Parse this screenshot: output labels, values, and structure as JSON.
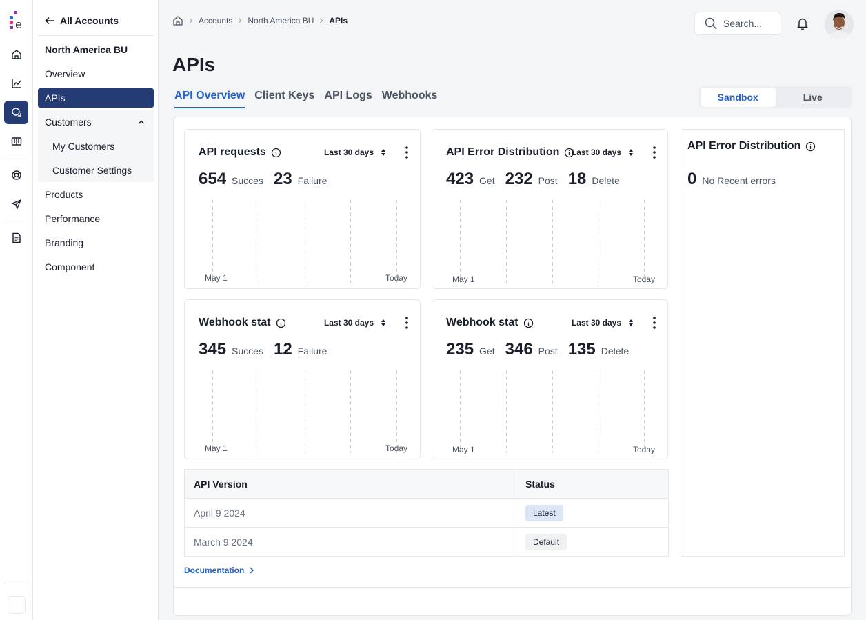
{
  "header": {
    "breadcrumbs": [
      "Accounts",
      "North America BU",
      "APIs"
    ],
    "search_placeholder": "Search...",
    "page_title": "APIs"
  },
  "subnav": {
    "back_label": "All Accounts",
    "group_title": "North America BU",
    "items": [
      "Overview",
      "APIs",
      "Customers",
      "My Customers",
      "Customer Settings",
      "Products",
      "Performance",
      "Branding",
      "Component"
    ]
  },
  "tabs": [
    "API Overview",
    "Client Keys",
    "API Logs",
    "Webhooks"
  ],
  "environment": {
    "options": [
      "Sandbox",
      "Live"
    ],
    "selected": "Sandbox"
  },
  "cards": [
    {
      "title": "API requests",
      "range": "Last 30 days",
      "stats": [
        {
          "value": "654",
          "label": "Succes"
        },
        {
          "value": "23",
          "label": "Failure"
        }
      ],
      "x_start": "May 1",
      "x_end": "Today"
    },
    {
      "title": "API Error Distribution",
      "range": "Last 30 days",
      "stats": [
        {
          "value": "423",
          "label": "Get"
        },
        {
          "value": "232",
          "label": "Post"
        },
        {
          "value": "18",
          "label": "Delete"
        }
      ],
      "x_start": "May 1",
      "x_end": "Today"
    },
    {
      "title": "Webhook stat",
      "range": "Last 30 days",
      "stats": [
        {
          "value": "345",
          "label": "Succes"
        },
        {
          "value": "12",
          "label": "Failure"
        }
      ],
      "x_start": "May 1",
      "x_end": "Today"
    },
    {
      "title": "Webhook stat",
      "range": "Last 30 days",
      "stats": [
        {
          "value": "235",
          "label": "Get"
        },
        {
          "value": "346",
          "label": "Post"
        },
        {
          "value": "135",
          "label": "Delete"
        }
      ],
      "x_start": "May 1",
      "x_end": "Today"
    }
  ],
  "error_panel": {
    "title": "API Error Distribution",
    "count": "0",
    "message": "No Recent errors"
  },
  "versions_table": {
    "headers": [
      "API Version",
      "Status"
    ],
    "rows": [
      {
        "version": "April 9 2024",
        "status": "Latest"
      },
      {
        "version": "March 9 2024",
        "status": "Default"
      }
    ]
  },
  "documentation_link": "Documentation",
  "colors": {
    "brand_navy": "#243b73",
    "accent_blue": "#2563c9"
  }
}
